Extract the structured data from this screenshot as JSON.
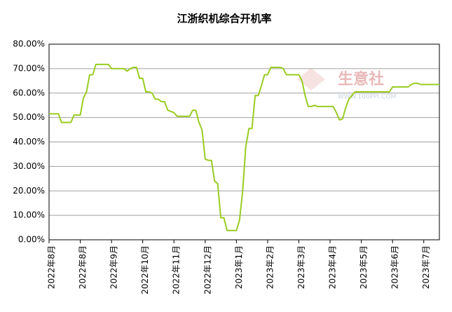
{
  "chart_data": {
    "type": "line",
    "title": "江浙织机综合开机率",
    "watermark": "生意社",
    "watermark_url": "WWW.100PPI.COM",
    "xlim": [
      0,
      125
    ],
    "xticks": [
      {
        "value": 0,
        "label": "2022年8月"
      },
      {
        "value": 10,
        "label": "2022年8月"
      },
      {
        "value": 20,
        "label": "2022年9月"
      },
      {
        "value": 30,
        "label": "2022年10月"
      },
      {
        "value": 40,
        "label": "2022年11月"
      },
      {
        "value": 50,
        "label": "2022年12月"
      },
      {
        "value": 60,
        "label": "2023年1月"
      },
      {
        "value": 70,
        "label": "2023年2月"
      },
      {
        "value": 80,
        "label": "2023年3月"
      },
      {
        "value": 90,
        "label": "2023年4月"
      },
      {
        "value": 100,
        "label": "2023年5月"
      },
      {
        "value": 110,
        "label": "2023年6月"
      },
      {
        "value": 120,
        "label": "2023年7月"
      }
    ],
    "ylim": [
      0,
      80
    ],
    "yticks": [
      {
        "value": 0,
        "label": "0.00%"
      },
      {
        "value": 10,
        "label": "10.00%"
      },
      {
        "value": 20,
        "label": "20.00%"
      },
      {
        "value": 30,
        "label": "30.00%"
      },
      {
        "value": 40,
        "label": "40.00%"
      },
      {
        "value": 50,
        "label": "50.00%"
      },
      {
        "value": 60,
        "label": "60.00%"
      },
      {
        "value": 70,
        "label": "70.00%"
      },
      {
        "value": 80,
        "label": "80.00%"
      }
    ],
    "grid": true,
    "series": [
      {
        "color": "#99cc22",
        "values": [
          51.5,
          51.5,
          51.5,
          51.5,
          48,
          48,
          48,
          48,
          51,
          51,
          51,
          58,
          60.5,
          67.5,
          67.5,
          71.7,
          71.7,
          71.7,
          71.7,
          71.7,
          70,
          70,
          70,
          70,
          70,
          69,
          70,
          70.5,
          70.5,
          66,
          66,
          60.5,
          60.5,
          60,
          57.5,
          57.5,
          56.5,
          56.5,
          53,
          52.5,
          52,
          50.5,
          50.5,
          50.5,
          50.5,
          50.5,
          53,
          53,
          48,
          45,
          33,
          32.5,
          32.5,
          24,
          23,
          9,
          9,
          3.8,
          3.8,
          3.8,
          3.8,
          8,
          20,
          38,
          45.5,
          45.5,
          59,
          59,
          63,
          67.5,
          67.5,
          70.5,
          70.5,
          70.5,
          70.5,
          70,
          67.5,
          67.5,
          67.5,
          67.5,
          67.5,
          65,
          59,
          54.5,
          54.5,
          55,
          54.5,
          54.5,
          54.5,
          54.5,
          54.5,
          54.5,
          52,
          49,
          49.5,
          54,
          57.5,
          59,
          60.5,
          60.5,
          60.5,
          60.5,
          60.5,
          60.5,
          60.5,
          60.5,
          60.5,
          60.5,
          60.5,
          60.5,
          62.5,
          62.5,
          62.5,
          62.5,
          62.5,
          62.5,
          63.5,
          64,
          64,
          63.5,
          63.5,
          63.5,
          63.5,
          63.5,
          63.5,
          63.5
        ]
      }
    ]
  }
}
